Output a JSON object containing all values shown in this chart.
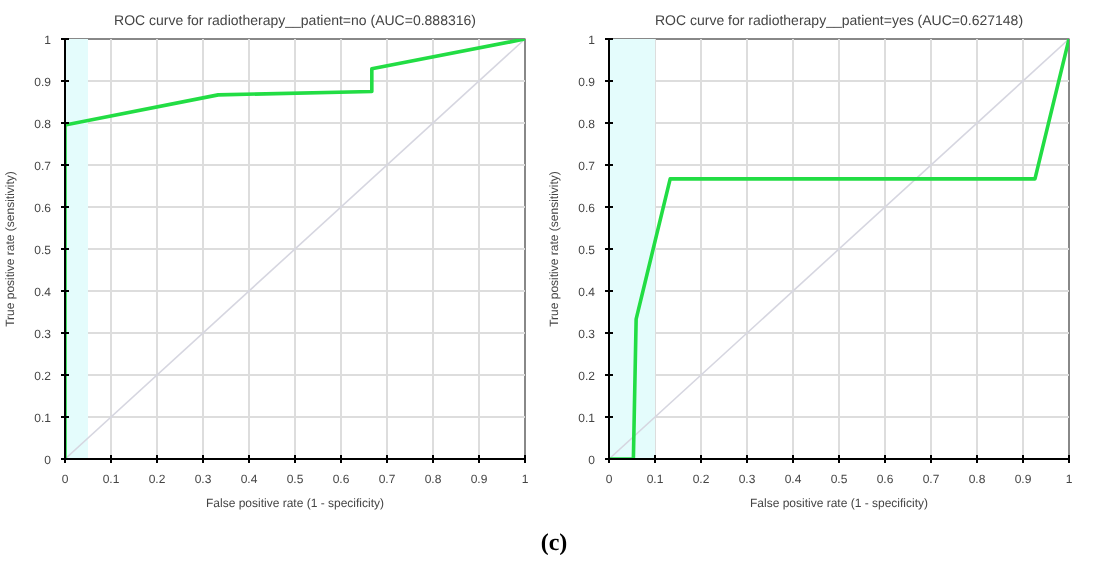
{
  "chart_data": [
    {
      "type": "line",
      "title": "ROC curve for radiotherapy__patient=no (AUC=0.888316)",
      "xlabel": "False positive rate (1 - specificity)",
      "ylabel": "True positive rate (sensitivity)",
      "series": [
        {
          "color": "#d6d6e0",
          "x": [
            0,
            1
          ],
          "values": [
            0,
            1
          ]
        },
        {
          "color": "#22dd44",
          "x": [
            0,
            0,
            0.333,
            0.667,
            0.667,
            1
          ],
          "values": [
            0,
            0.795,
            0.867,
            0.875,
            0.929,
            1
          ]
        }
      ],
      "bands": [
        {
          "axis": "x",
          "from": 0,
          "to": 0.05,
          "color": "#e4fcfc"
        }
      ],
      "xlim": [
        0,
        1
      ],
      "ylim": [
        0,
        1
      ],
      "xticks": [
        0,
        0.1,
        0.2,
        0.3,
        0.4,
        0.5,
        0.6,
        0.7,
        0.8,
        0.9,
        1
      ],
      "yticks": [
        0,
        0.1,
        0.2,
        0.3,
        0.4,
        0.5,
        0.6,
        0.7,
        0.8,
        0.9,
        1
      ],
      "grid": true,
      "annotations": [
        "(c)"
      ]
    },
    {
      "type": "line",
      "title": "ROC curve for radiotherapy__patient=yes (AUC=0.627148)",
      "xlabel": "False positive rate (1 - specificity)",
      "ylabel": "True positive rate (sensitivity)",
      "series": [
        {
          "color": "#d6d6e0",
          "x": [
            0,
            1
          ],
          "values": [
            0,
            1
          ]
        },
        {
          "color": "#22dd44",
          "x": [
            0,
            0.053,
            0.059,
            0.133,
            0.926,
            1
          ],
          "values": [
            0,
            0,
            0.333,
            0.667,
            0.667,
            1
          ]
        }
      ],
      "bands": [
        {
          "axis": "x",
          "from": 0,
          "to": 0.1,
          "color": "#e4fcfc"
        }
      ],
      "xlim": [
        0,
        1
      ],
      "ylim": [
        0,
        1
      ],
      "xticks": [
        0,
        0.1,
        0.2,
        0.3,
        0.4,
        0.5,
        0.6,
        0.7,
        0.8,
        0.9,
        1
      ],
      "yticks": [
        0,
        0.1,
        0.2,
        0.3,
        0.4,
        0.5,
        0.6,
        0.7,
        0.8,
        0.9,
        1
      ],
      "grid": true
    }
  ]
}
